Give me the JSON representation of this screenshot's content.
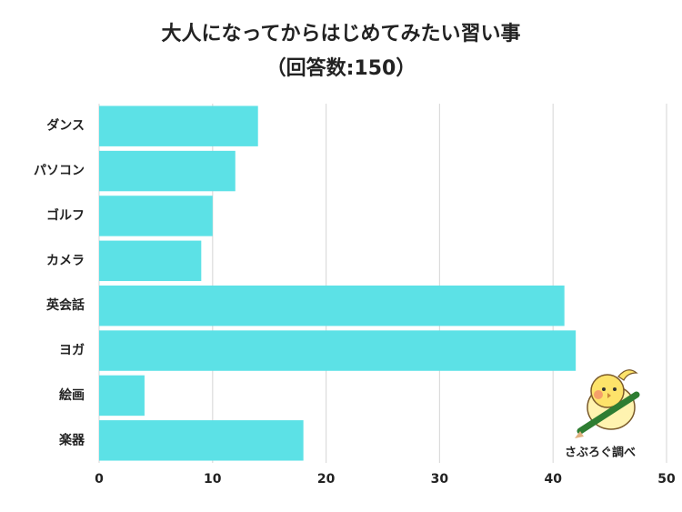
{
  "chart_data": {
    "type": "bar",
    "orientation": "horizontal",
    "title": "大人になってからはじめてみたい習い事",
    "subtitle": "（回答数:150）",
    "categories": [
      "ダンス",
      "パソコン",
      "ゴルフ",
      "カメラ",
      "英会話",
      "ヨガ",
      "絵画",
      "楽器"
    ],
    "values": [
      14,
      12,
      10,
      9,
      41,
      42,
      4,
      18
    ],
    "color": "#5ce1e6",
    "xlim": [
      0,
      50
    ],
    "xticks": [
      0,
      10,
      20,
      30,
      40,
      50
    ],
    "grid": true,
    "watermark": "さぶろぐ調べ"
  }
}
